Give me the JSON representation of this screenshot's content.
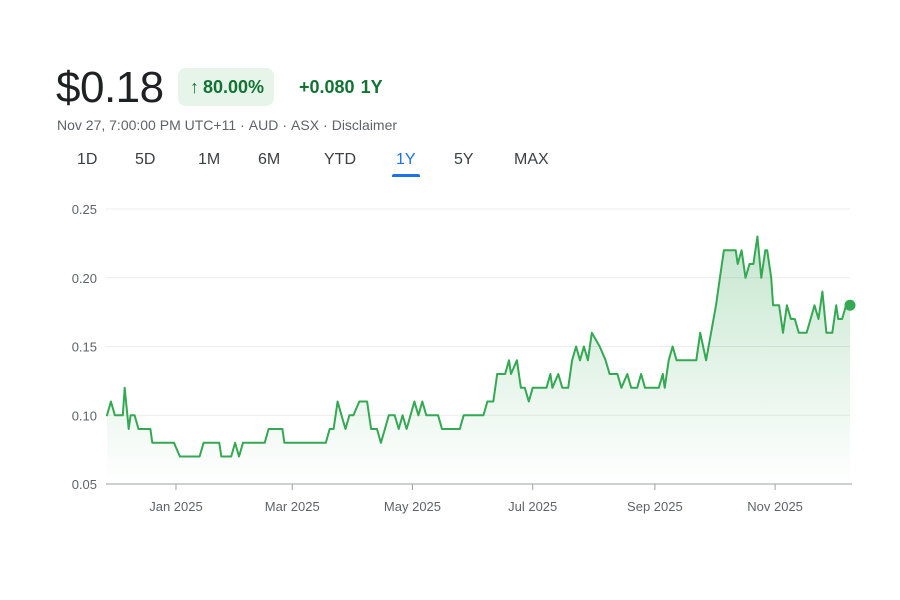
{
  "header": {
    "price": "$0.18",
    "change_percent": "80.00%",
    "change_direction_icon": "arrow-up-icon",
    "change_value": "+0.080",
    "change_period": "1Y"
  },
  "meta": {
    "timestamp": "Nov 27, 7:00:00 PM UTC+11",
    "currency": "AUD",
    "exchange": "ASX",
    "disclaimer": "Disclaimer"
  },
  "tabs": [
    {
      "label": "1D",
      "active": false
    },
    {
      "label": "5D",
      "active": false
    },
    {
      "label": "1M",
      "active": false
    },
    {
      "label": "6M",
      "active": false
    },
    {
      "label": "YTD",
      "active": false
    },
    {
      "label": "1Y",
      "active": true
    },
    {
      "label": "5Y",
      "active": false
    },
    {
      "label": "MAX",
      "active": false
    }
  ],
  "colors": {
    "line": "#34a853",
    "positive_text": "#137333",
    "badge_bg": "#e6f4ea",
    "active_tab": "#1a73e8",
    "grid": "#ececec"
  },
  "chart_data": {
    "type": "area",
    "ylim": [
      0.05,
      0.25
    ],
    "yticks": [
      "0.25",
      "0.20",
      "0.15",
      "0.10",
      "0.05"
    ],
    "xticks": [
      "Jan 2025",
      "Mar 2025",
      "May 2025",
      "Jul 2025",
      "Sep 2025",
      "Nov 2025"
    ],
    "x_range": [
      "2024-11-27",
      "2025-11-27"
    ],
    "grid": true,
    "series": [
      {
        "points": [
          [
            "2024-11-27",
            0.1
          ],
          [
            "2024-11-29",
            0.11
          ],
          [
            "2024-12-01",
            0.1
          ],
          [
            "2024-12-05",
            0.1
          ],
          [
            "2024-12-06",
            0.12
          ],
          [
            "2024-12-08",
            0.09
          ],
          [
            "2024-12-09",
            0.1
          ],
          [
            "2024-12-11",
            0.1
          ],
          [
            "2024-12-13",
            0.09
          ],
          [
            "2024-12-19",
            0.09
          ],
          [
            "2024-12-20",
            0.08
          ],
          [
            "2024-12-31",
            0.08
          ],
          [
            "2025-01-03",
            0.07
          ],
          [
            "2025-01-13",
            0.07
          ],
          [
            "2025-01-15",
            0.08
          ],
          [
            "2025-01-23",
            0.08
          ],
          [
            "2025-01-24",
            0.07
          ],
          [
            "2025-01-29",
            0.07
          ],
          [
            "2025-01-31",
            0.08
          ],
          [
            "2025-02-02",
            0.07
          ],
          [
            "2025-02-04",
            0.08
          ],
          [
            "2025-02-15",
            0.08
          ],
          [
            "2025-02-17",
            0.09
          ],
          [
            "2025-02-24",
            0.09
          ],
          [
            "2025-02-25",
            0.08
          ],
          [
            "2025-03-18",
            0.08
          ],
          [
            "2025-03-20",
            0.09
          ],
          [
            "2025-03-22",
            0.09
          ],
          [
            "2025-03-24",
            0.11
          ],
          [
            "2025-03-26",
            0.1
          ],
          [
            "2025-03-28",
            0.09
          ],
          [
            "2025-03-30",
            0.1
          ],
          [
            "2025-04-01",
            0.1
          ],
          [
            "2025-04-04",
            0.11
          ],
          [
            "2025-04-08",
            0.11
          ],
          [
            "2025-04-10",
            0.09
          ],
          [
            "2025-04-13",
            0.09
          ],
          [
            "2025-04-15",
            0.08
          ],
          [
            "2025-04-17",
            0.09
          ],
          [
            "2025-04-19",
            0.1
          ],
          [
            "2025-04-22",
            0.1
          ],
          [
            "2025-04-24",
            0.09
          ],
          [
            "2025-04-26",
            0.1
          ],
          [
            "2025-04-28",
            0.09
          ],
          [
            "2025-04-30",
            0.1
          ],
          [
            "2025-05-02",
            0.11
          ],
          [
            "2025-05-04",
            0.1
          ],
          [
            "2025-05-06",
            0.11
          ],
          [
            "2025-05-08",
            0.1
          ],
          [
            "2025-05-14",
            0.1
          ],
          [
            "2025-05-16",
            0.09
          ],
          [
            "2025-05-25",
            0.09
          ],
          [
            "2025-05-27",
            0.1
          ],
          [
            "2025-06-06",
            0.1
          ],
          [
            "2025-06-08",
            0.11
          ],
          [
            "2025-06-11",
            0.11
          ],
          [
            "2025-06-13",
            0.13
          ],
          [
            "2025-06-17",
            0.13
          ],
          [
            "2025-06-19",
            0.14
          ],
          [
            "2025-06-20",
            0.13
          ],
          [
            "2025-06-23",
            0.14
          ],
          [
            "2025-06-25",
            0.12
          ],
          [
            "2025-06-27",
            0.12
          ],
          [
            "2025-06-29",
            0.11
          ],
          [
            "2025-07-01",
            0.12
          ],
          [
            "2025-07-08",
            0.12
          ],
          [
            "2025-07-10",
            0.13
          ],
          [
            "2025-07-11",
            0.12
          ],
          [
            "2025-07-14",
            0.13
          ],
          [
            "2025-07-16",
            0.12
          ],
          [
            "2025-07-19",
            0.12
          ],
          [
            "2025-07-21",
            0.14
          ],
          [
            "2025-07-23",
            0.15
          ],
          [
            "2025-07-25",
            0.14
          ],
          [
            "2025-07-27",
            0.15
          ],
          [
            "2025-07-29",
            0.14
          ],
          [
            "2025-07-31",
            0.16
          ],
          [
            "2025-08-04",
            0.15
          ],
          [
            "2025-08-07",
            0.14
          ],
          [
            "2025-08-09",
            0.13
          ],
          [
            "2025-08-13",
            0.13
          ],
          [
            "2025-08-15",
            0.12
          ],
          [
            "2025-08-18",
            0.13
          ],
          [
            "2025-08-20",
            0.12
          ],
          [
            "2025-08-23",
            0.12
          ],
          [
            "2025-08-25",
            0.13
          ],
          [
            "2025-08-27",
            0.12
          ],
          [
            "2025-09-03",
            0.12
          ],
          [
            "2025-09-05",
            0.13
          ],
          [
            "2025-09-06",
            0.12
          ],
          [
            "2025-09-08",
            0.14
          ],
          [
            "2025-09-10",
            0.15
          ],
          [
            "2025-09-12",
            0.14
          ],
          [
            "2025-09-22",
            0.14
          ],
          [
            "2025-09-24",
            0.16
          ],
          [
            "2025-09-27",
            0.14
          ],
          [
            "2025-10-02",
            0.18
          ],
          [
            "2025-10-04",
            0.2
          ],
          [
            "2025-10-06",
            0.22
          ],
          [
            "2025-10-12",
            0.22
          ],
          [
            "2025-10-13",
            0.21
          ],
          [
            "2025-10-15",
            0.22
          ],
          [
            "2025-10-17",
            0.2
          ],
          [
            "2025-10-19",
            0.21
          ],
          [
            "2025-10-21",
            0.21
          ],
          [
            "2025-10-23",
            0.23
          ],
          [
            "2025-10-25",
            0.2
          ],
          [
            "2025-10-27",
            0.22
          ],
          [
            "2025-10-28",
            0.22
          ],
          [
            "2025-10-30",
            0.2
          ],
          [
            "2025-10-31",
            0.18
          ],
          [
            "2025-11-03",
            0.18
          ],
          [
            "2025-11-05",
            0.16
          ],
          [
            "2025-11-07",
            0.18
          ],
          [
            "2025-11-09",
            0.17
          ],
          [
            "2025-11-11",
            0.17
          ],
          [
            "2025-11-13",
            0.16
          ],
          [
            "2025-11-17",
            0.16
          ],
          [
            "2025-11-19",
            0.17
          ],
          [
            "2025-11-21",
            0.18
          ],
          [
            "2025-11-23",
            0.17
          ],
          [
            "2025-11-25",
            0.19
          ],
          [
            "2025-11-27",
            0.16
          ],
          [
            "2025-11-30",
            0.16
          ],
          [
            "2025-12-02",
            0.18
          ],
          [
            "2025-12-03",
            0.17
          ],
          [
            "2025-12-05",
            0.17
          ],
          [
            "2025-12-07",
            0.18
          ],
          [
            "2025-12-09",
            0.18
          ]
        ]
      }
    ]
  }
}
